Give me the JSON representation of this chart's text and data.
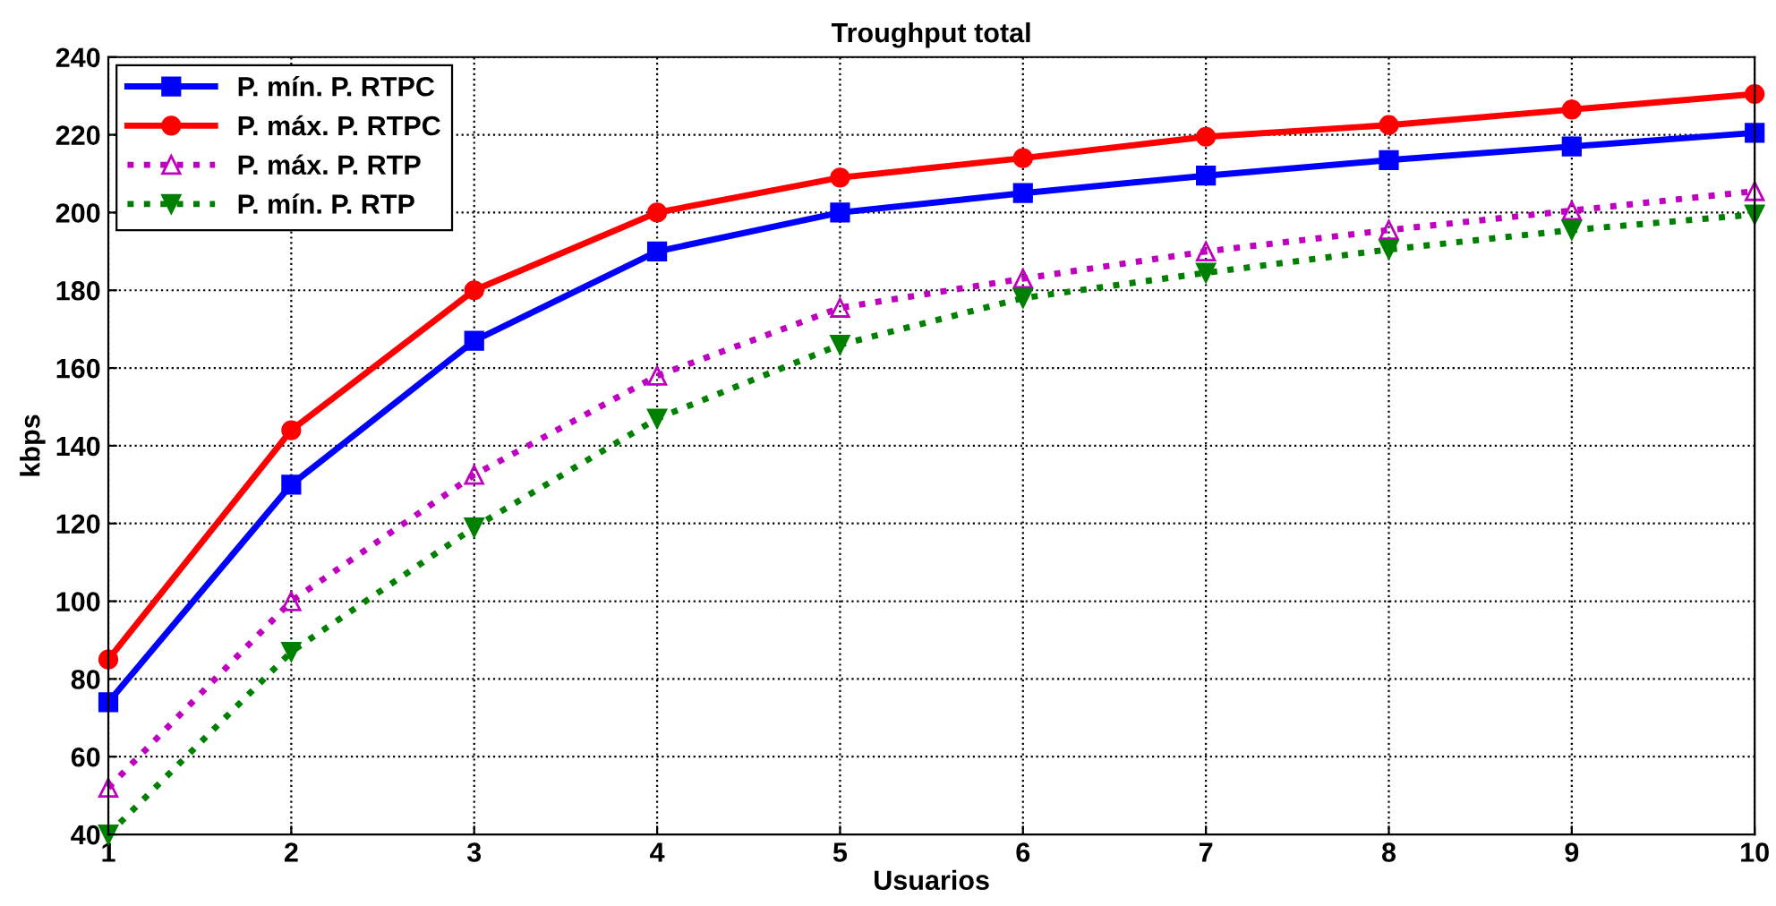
{
  "chart_data": {
    "type": "line",
    "title": "Troughput total",
    "xlabel": "Usuarios",
    "ylabel": "kbps",
    "x": [
      1,
      2,
      3,
      4,
      5,
      6,
      7,
      8,
      9,
      10
    ],
    "series": [
      {
        "name": "P. mín. P. RTPC",
        "color": "#0000ff",
        "marker": "square",
        "line_style": "solid",
        "values": [
          74,
          130,
          167,
          190,
          200,
          205,
          209.5,
          213.5,
          217,
          220.5
        ]
      },
      {
        "name": "P. máx. P. RTPC",
        "color": "#ff0000",
        "marker": "circle",
        "line_style": "solid",
        "values": [
          85,
          144,
          180,
          200,
          209,
          214,
          219.5,
          222.5,
          226.5,
          230.5
        ]
      },
      {
        "name": "P. máx. P. RTP",
        "color": "#c000c0",
        "marker": "triangle",
        "line_style": "dotted",
        "values": [
          52,
          100,
          132.5,
          158,
          175.5,
          183,
          190,
          195.5,
          200.5,
          205.5
        ]
      },
      {
        "name": "P. mín. P. RTP",
        "color": "#008000",
        "marker": "triangle_down",
        "line_style": "dotted",
        "values": [
          40,
          87,
          119,
          147,
          166,
          178,
          184.5,
          190.5,
          195.5,
          199.5
        ]
      }
    ],
    "xlim": [
      1,
      10
    ],
    "xticks": [
      1,
      2,
      3,
      4,
      5,
      6,
      7,
      8,
      9,
      10
    ],
    "ylim": [
      40,
      240
    ],
    "yticks": [
      40,
      60,
      80,
      100,
      120,
      140,
      160,
      180,
      200,
      220,
      240
    ],
    "grid": true,
    "legend": "top left"
  }
}
